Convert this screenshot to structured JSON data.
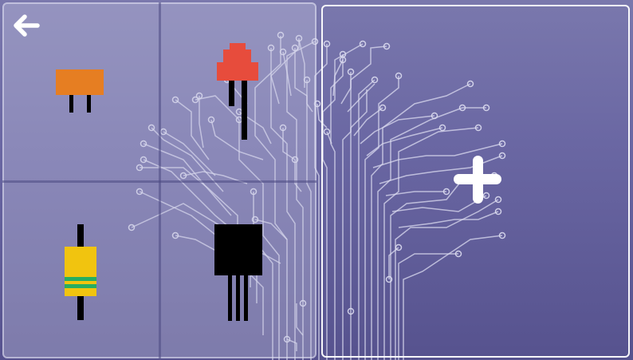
{
  "colors": {
    "capacitor": "#e67e22",
    "led": "#e74c3c",
    "resistor_body": "#f1c40f",
    "resistor_band": "#27ae60",
    "transistor": "#000000",
    "panel_border": "#ffffff",
    "background_top": "#7a78ad",
    "background_bottom": "#56528e"
  },
  "icons": {
    "back": "arrow-left-icon",
    "add": "plus-icon"
  },
  "components": [
    {
      "name": "capacitor",
      "icon": "capacitor-icon"
    },
    {
      "name": "led",
      "icon": "led-icon"
    },
    {
      "name": "resistor",
      "icon": "resistor-icon"
    },
    {
      "name": "transistor",
      "icon": "transistor-icon"
    }
  ]
}
